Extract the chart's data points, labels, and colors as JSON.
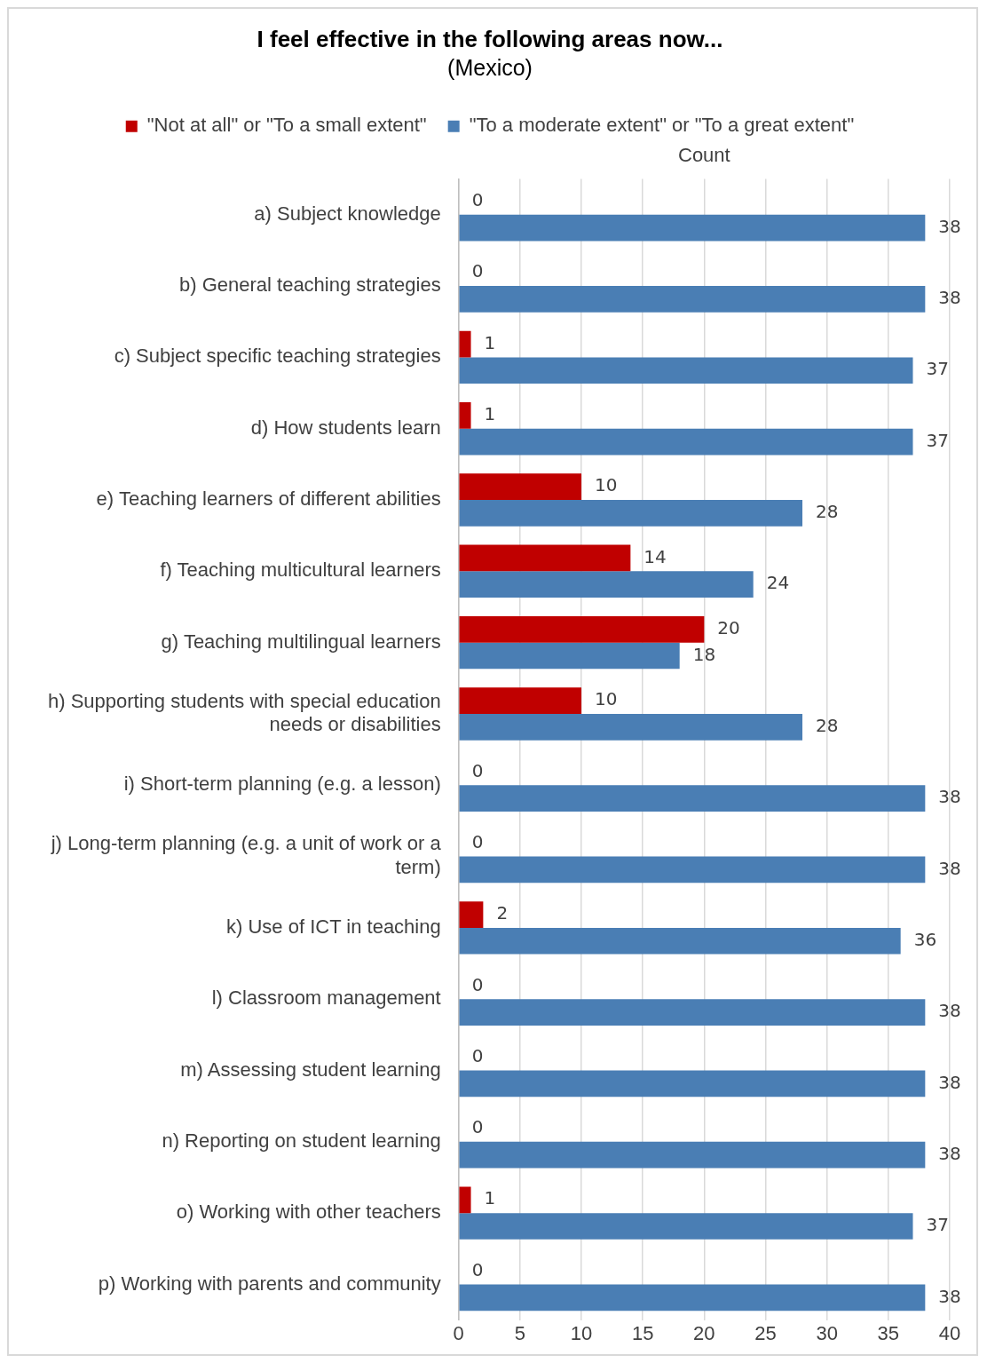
{
  "chart_data": {
    "type": "bar",
    "orientation": "horizontal",
    "title": "I feel effective in the following areas now...",
    "subtitle": "(Mexico)",
    "xlabel": "Count",
    "categories": [
      "a) Subject knowledge",
      "b) General teaching strategies",
      "c) Subject specific teaching strategies",
      "d) How students learn",
      "e) Teaching learners of different abilities",
      "f) Teaching multicultural learners",
      "g) Teaching multilingual learners",
      "h) Supporting students with special education needs or disabilities",
      "i) Short-term planning (e.g. a lesson)",
      "j) Long-term planning (e.g. a unit of work or a term)",
      "k) Use of ICT in teaching",
      "l) Classroom management",
      "m) Assessing student learning",
      "n) Reporting on student learning",
      "o) Working with other teachers",
      "p) Working with parents and community"
    ],
    "series": [
      {
        "name": "\"Not at all\" or \"To a small extent\"",
        "color": "#c00000",
        "values": [
          0,
          0,
          1,
          1,
          10,
          14,
          20,
          10,
          0,
          0,
          2,
          0,
          0,
          0,
          1,
          0
        ]
      },
      {
        "name": "\"To a moderate extent\" or \"To a great extent\"",
        "color": "#4a7eb4",
        "values": [
          38,
          38,
          37,
          37,
          28,
          24,
          18,
          28,
          38,
          38,
          36,
          38,
          38,
          38,
          37,
          38
        ]
      }
    ],
    "xlim": [
      0,
      40
    ],
    "xticks": [
      0,
      5,
      10,
      15,
      20,
      25,
      30,
      35,
      40
    ],
    "grid": "x",
    "legend": "top",
    "data_labels": true
  }
}
